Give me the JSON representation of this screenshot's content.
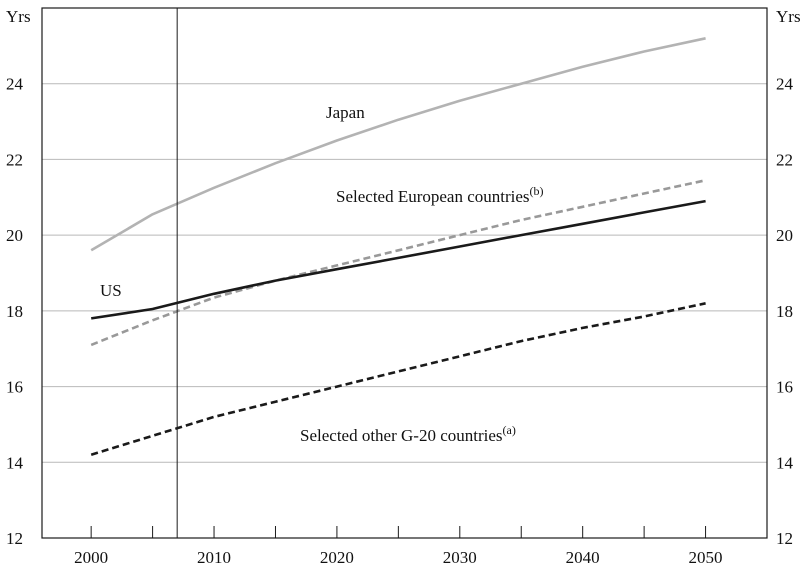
{
  "chart_data": {
    "type": "line",
    "ylabel_left": "Yrs",
    "ylabel_right": "Yrs",
    "xlim": [
      1996,
      2055
    ],
    "ylim": [
      12,
      26
    ],
    "x_ticks": [
      2000,
      2010,
      2020,
      2030,
      2040,
      2050
    ],
    "y_ticks": [
      12,
      14,
      16,
      18,
      20,
      22,
      24
    ],
    "grid": "horizontal",
    "reference_line_x": 2007,
    "series": [
      {
        "name": "Japan",
        "color": "#b3b3b3",
        "dash": "solid",
        "x": [
          2000,
          2005,
          2010,
          2015,
          2020,
          2025,
          2030,
          2035,
          2040,
          2045,
          2050
        ],
        "y": [
          19.6,
          20.55,
          21.25,
          21.9,
          22.5,
          23.05,
          23.55,
          24.0,
          24.45,
          24.85,
          25.2
        ]
      },
      {
        "name": "Selected European countries",
        "superscript": "(b)",
        "color": "#999999",
        "dash": "dashed",
        "x": [
          2000,
          2005,
          2010,
          2015,
          2020,
          2025,
          2030,
          2035,
          2040,
          2045,
          2050
        ],
        "y": [
          17.1,
          17.75,
          18.35,
          18.8,
          19.2,
          19.6,
          20.0,
          20.4,
          20.75,
          21.1,
          21.45
        ]
      },
      {
        "name": "US",
        "color": "#1a1a1a",
        "dash": "solid",
        "x": [
          2000,
          2005,
          2010,
          2015,
          2020,
          2025,
          2030,
          2035,
          2040,
          2045,
          2050
        ],
        "y": [
          17.8,
          18.05,
          18.45,
          18.8,
          19.1,
          19.4,
          19.7,
          20.0,
          20.3,
          20.6,
          20.9
        ]
      },
      {
        "name": "Selected other G-20 countries",
        "superscript": "(a)",
        "color": "#1a1a1a",
        "dash": "dashed",
        "x": [
          2000,
          2005,
          2010,
          2015,
          2020,
          2025,
          2030,
          2035,
          2040,
          2045,
          2050
        ],
        "y": [
          14.2,
          14.7,
          15.2,
          15.6,
          16.0,
          16.4,
          16.8,
          17.2,
          17.55,
          17.85,
          18.2
        ]
      }
    ]
  }
}
